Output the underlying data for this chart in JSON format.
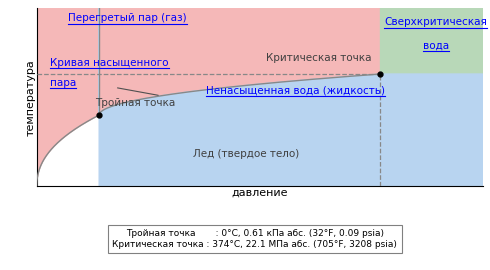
{
  "xlabel": "давление",
  "ylabel": "температура",
  "bg_color": "#ffffff",
  "region_gas_color": "#f5b8b8",
  "region_liquid_color": "#b8d4f0",
  "region_solid_color": "#cccccc",
  "region_supercritical_color": "#b8d8b8",
  "dashed_line_color": "#888888",
  "curve_color": "#888888",
  "tp": [
    0.14,
    0.4
  ],
  "cp": [
    0.77,
    0.63
  ],
  "label_gas": "Перегретый пар (газ)",
  "label_saturation_l1": "Кривая насыщенного",
  "label_saturation_l2": "пара",
  "label_liquid": "Ненасыщенная вода (жидкость)",
  "label_solid": "Лед (твердое тело)",
  "label_supercritical_l1": "Сверхкритическая",
  "label_supercritical_l2": "вода",
  "label_triple": "Тройная точка",
  "label_critical": "Критическая точка",
  "note_line1": "Тройная точка       : 0°C, 0.61 кПа абс. (32°F, 0.09 psia)",
  "note_line2": "Критическая точка : 374°C, 22.1 МПа абс. (705°F, 3208 psia)"
}
